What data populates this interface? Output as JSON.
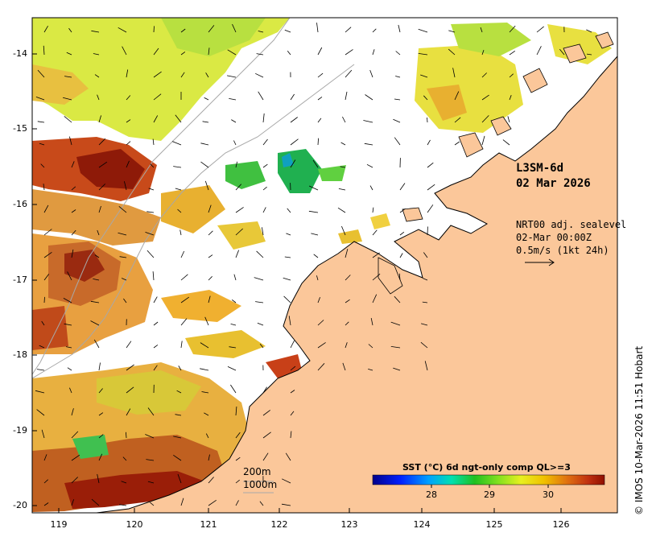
{
  "map": {
    "product_title": "L3SM-6d",
    "product_date": "02 Mar 2026",
    "current_title": "NRT00 adj. sealevel",
    "current_time": "02-Mar 00:00Z",
    "current_scale": "0.5m/s (1kt 24h)",
    "isobath_200": "200m",
    "isobath_1000": "1000m",
    "credit": "© IMOS 10-Mar-2026 11:51 Hobart",
    "lat_ticks": [
      "-14",
      "-15",
      "-16",
      "-17",
      "-18",
      "-19",
      "-20"
    ],
    "lon_ticks": [
      "119",
      "120",
      "121",
      "122",
      "123",
      "124",
      "125",
      "126"
    ],
    "colorbar": {
      "title": "SST (°C) 6d ngt-only comp QL>=3",
      "ticks": [
        "28",
        "29",
        "30"
      ]
    },
    "colors": {
      "land": "#fbc79a",
      "coast": "#000000",
      "isobath": "#a8a8a8",
      "no_data": "#ffffff"
    }
  }
}
